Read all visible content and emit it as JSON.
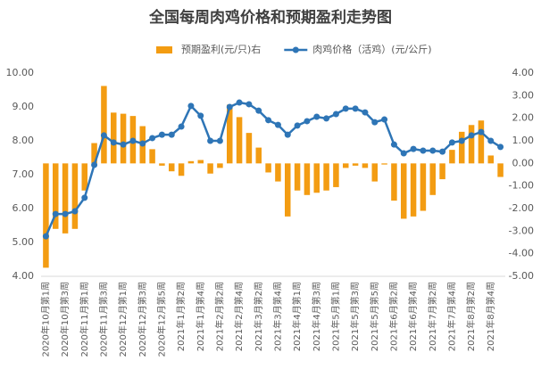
{
  "chart_data": {
    "type": "combo",
    "title": "全国每周肉鸡价格和预期盈利走势图",
    "categories": [
      "2020年10月第1周",
      null,
      "2020年10月第3周",
      null,
      "2020年11月第1周",
      null,
      "2020年11月第3周",
      null,
      "2020年12月第1周",
      null,
      "2020年12月第3周",
      null,
      "2020年12月第5周",
      null,
      "2021年1月第2周",
      null,
      "2021年1月第4周",
      null,
      "2021年2月第2周",
      null,
      "2021年2月第4周",
      null,
      "2021年3月第2周",
      null,
      "2021年3月第4周",
      null,
      "2021年4月第1周",
      null,
      "2021年4月第3周",
      null,
      "2021年5月第1周",
      null,
      "2021年5月第3周",
      null,
      "2021年5月第5周",
      null,
      "2021年6月第2周",
      null,
      "2021年6月第4周",
      null,
      "2021年7月第2周",
      null,
      "2021年7月第4周",
      null,
      "2021年8月第2周",
      null,
      "2021年8月第4周",
      null
    ],
    "series": [
      {
        "name": "预期盈利(元/只)右",
        "type": "bar",
        "axis": "y2",
        "color": "#f39c12",
        "values": [
          -4.62,
          -2.9,
          -3.1,
          -2.9,
          -1.2,
          0.9,
          3.43,
          2.25,
          2.2,
          2.1,
          1.65,
          0.63,
          -0.1,
          -0.35,
          -0.55,
          0.1,
          0.15,
          -0.45,
          -0.2,
          2.6,
          2.05,
          1.35,
          0.7,
          -0.4,
          -0.8,
          -2.35,
          -1.2,
          -1.4,
          -1.3,
          -1.2,
          -1.05,
          -0.2,
          -0.1,
          -0.2,
          -0.8,
          -0.05,
          -1.65,
          -2.45,
          -2.35,
          -2.1,
          -1.4,
          -0.7,
          0.6,
          1.4,
          1.7,
          1.9,
          0.35,
          -0.6
        ]
      },
      {
        "name": "肉鸡价格（活鸡）(元/公斤)",
        "type": "line",
        "color": "#2e75b6",
        "values": [
          5.18,
          5.84,
          5.84,
          5.92,
          6.32,
          7.29,
          8.16,
          7.95,
          7.89,
          8.0,
          7.92,
          8.08,
          8.18,
          8.18,
          8.42,
          9.03,
          8.74,
          8.0,
          8.0,
          9.0,
          9.13,
          9.08,
          8.89,
          8.61,
          8.47,
          8.18,
          8.45,
          8.58,
          8.71,
          8.66,
          8.79,
          8.95,
          8.95,
          8.84,
          8.55,
          8.63,
          7.89,
          7.63,
          7.76,
          7.71,
          7.71,
          7.68,
          7.95,
          8.0,
          8.16,
          8.26,
          8.0,
          7.82
        ]
      }
    ],
    "ylim": [
      4,
      10
    ],
    "yticks": [
      {
        "value": 4,
        "label": "4.00"
      },
      {
        "value": 5,
        "label": "5.00"
      },
      {
        "value": 6,
        "label": "6.00"
      },
      {
        "value": 7,
        "label": "7.00"
      },
      {
        "value": 8,
        "label": "8.00"
      },
      {
        "value": 9,
        "label": "9.00"
      },
      {
        "value": 10,
        "label": "10.00"
      }
    ],
    "y2lim": [
      -5,
      4
    ],
    "y2ticks": [
      {
        "value": -5,
        "label": "-5.00"
      },
      {
        "value": -4,
        "label": "-4.00"
      },
      {
        "value": -3,
        "label": "-3.00"
      },
      {
        "value": -2,
        "label": "-2.00"
      },
      {
        "value": -1,
        "label": "-1.00"
      },
      {
        "value": 0,
        "label": "0.00"
      },
      {
        "value": 1,
        "label": "1.00"
      },
      {
        "value": 2,
        "label": "2.00"
      },
      {
        "value": 3,
        "label": "3.00"
      },
      {
        "value": 4,
        "label": "4.00"
      }
    ],
    "grid": false,
    "legend": "top"
  }
}
